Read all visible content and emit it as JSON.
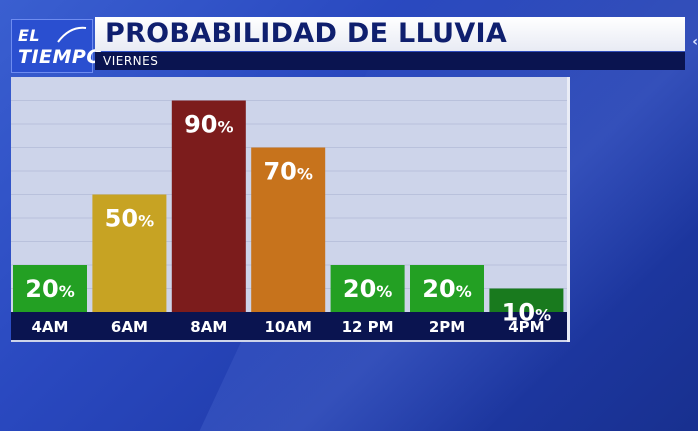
{
  "logo": {
    "line1": "EL",
    "line2": "TIEMPO"
  },
  "header": {
    "title": "PROBABILIDAD DE LLUVIA",
    "subtitle": "VIERNES"
  },
  "colors": {
    "green": "#23a023",
    "dark_green": "#197a1e",
    "gold": "#c7a323",
    "dark_red": "#7c1c1c",
    "orange": "#c7731c",
    "axis_strip": "#0a1450",
    "panel": "#cdd4ea"
  },
  "chart_data": {
    "type": "bar",
    "title": "PROBABILIDAD DE LLUVIA",
    "subtitle": "VIERNES",
    "categories": [
      "4AM",
      "6AM",
      "8AM",
      "10AM",
      "12 PM",
      "2PM",
      "4PM"
    ],
    "values": [
      20,
      50,
      90,
      70,
      20,
      20,
      10
    ],
    "value_labels": [
      "20%",
      "50%",
      "90%",
      "70%",
      "20%",
      "20%",
      "10%"
    ],
    "bar_colors": [
      "#23a023",
      "#c7a323",
      "#7c1c1c",
      "#c7731c",
      "#23a023",
      "#23a023",
      "#197a1e"
    ],
    "ylim": [
      0,
      100
    ],
    "grid": true,
    "legend": "none"
  }
}
